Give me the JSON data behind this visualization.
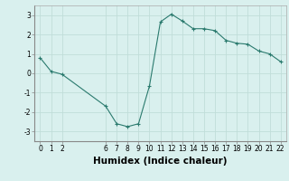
{
  "x": [
    0,
    1,
    2,
    6,
    7,
    8,
    9,
    10,
    11,
    12,
    13,
    14,
    15,
    16,
    17,
    18,
    19,
    20,
    21,
    22
  ],
  "y": [
    0.8,
    0.1,
    -0.05,
    -1.7,
    -2.6,
    -2.75,
    -2.6,
    -0.65,
    2.65,
    3.05,
    2.7,
    2.3,
    2.3,
    2.2,
    1.7,
    1.55,
    1.5,
    1.15,
    1.0,
    0.6
  ],
  "line_color": "#2a7a6e",
  "marker": "+",
  "marker_size": 3,
  "bg_color": "#d9f0ee",
  "grid_color": "#c0ddd9",
  "xlabel": "Humidex (Indice chaleur)",
  "ylim": [
    -3.5,
    3.5
  ],
  "xlim": [
    -0.5,
    22.5
  ],
  "yticks": [
    -3,
    -2,
    -1,
    0,
    1,
    2,
    3
  ],
  "xticks": [
    0,
    1,
    2,
    6,
    7,
    8,
    9,
    10,
    11,
    12,
    13,
    14,
    15,
    16,
    17,
    18,
    19,
    20,
    21,
    22
  ],
  "tick_label_fontsize": 5.5,
  "xlabel_fontsize": 7.5
}
